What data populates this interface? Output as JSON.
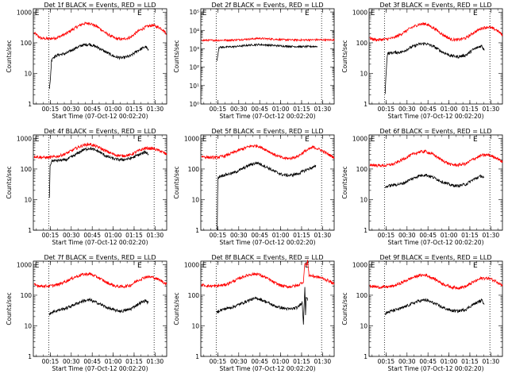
{
  "chart_data": [
    {
      "type": "line",
      "title": "Det 1f BLACK = Events, RED = LLD",
      "xlabel": "Start Time (07-Oct-12 00:02:20)",
      "ylabel": "Counts/sec",
      "xlim": [
        0.5,
        96
      ],
      "ylim": [
        1,
        1300
      ],
      "log_y": true,
      "x_ticks": [
        "00:15",
        "00:30",
        "00:45",
        "01:00",
        "01:15",
        "01:30"
      ],
      "x_tick_values": [
        12.67,
        27.67,
        42.67,
        57.67,
        72.67,
        87.67
      ],
      "y_ticks": [
        "1",
        "10",
        "100",
        "1000"
      ],
      "y_tick_values": [
        1,
        10,
        100,
        1000
      ],
      "vlines": [
        11.5,
        87.0
      ],
      "flags": [
        "E",
        "E"
      ],
      "flag_x": [
        1.5,
        75.0
      ],
      "series": [
        {
          "color": "#ff0000",
          "x": [
            1,
            6,
            12,
            18,
            24,
            30,
            36,
            41,
            47,
            53,
            59,
            64,
            70,
            75,
            81,
            86,
            92,
            96
          ],
          "values": [
            210,
            140,
            135,
            150,
            200,
            300,
            420,
            440,
            320,
            200,
            140,
            130,
            150,
            230,
            330,
            380,
            300,
            200
          ]
        },
        {
          "color": "#000000",
          "x": [
            12,
            12.5,
            13.5,
            14,
            18,
            24,
            30,
            36,
            41,
            47,
            53,
            59,
            64,
            70,
            75,
            81,
            83
          ],
          "values": [
            3,
            5,
            25,
            32,
            40,
            45,
            65,
            85,
            90,
            70,
            48,
            35,
            32,
            37,
            55,
            75,
            55
          ]
        }
      ]
    },
    {
      "type": "line",
      "title": "Det 2f BLACK = Events, RED = LLD",
      "xlabel": "Start Time (07-Oct-12 00:02:20)",
      "ylabel": "Counts/sec",
      "xlim": [
        0.5,
        96
      ],
      "ylim": [
        1,
        150000
      ],
      "log_y": true,
      "x_ticks": [
        "00:15",
        "00:30",
        "00:45",
        "01:00",
        "01:15",
        "01:30"
      ],
      "x_tick_values": [
        12.67,
        27.67,
        42.67,
        57.67,
        72.67,
        87.67
      ],
      "y_ticks": [
        "10⁰",
        "10¹",
        "10²",
        "10³",
        "10⁴",
        "10⁵"
      ],
      "y_tick_values": [
        1,
        10,
        100,
        1000,
        10000,
        100000
      ],
      "vlines": [
        11.5,
        87.0
      ],
      "flags": [
        "E",
        "E"
      ],
      "flag_x": [
        1.5,
        75.0
      ],
      "series": [
        {
          "color": "#ff0000",
          "x": [
            1,
            12,
            24,
            36,
            42,
            48,
            60,
            72,
            84,
            96
          ],
          "values": [
            2900,
            2900,
            3000,
            3400,
            3700,
            3500,
            3100,
            3000,
            3100,
            3000
          ]
        },
        {
          "color": "#000000",
          "x": [
            12,
            12.5,
            13.5,
            24,
            36,
            42,
            48,
            60,
            72,
            84
          ],
          "values": [
            200,
            400,
            1200,
            1300,
            1600,
            1700,
            1600,
            1400,
            1300,
            1350
          ]
        }
      ]
    },
    {
      "type": "line",
      "title": "Det 3f BLACK = Events, RED = LLD",
      "xlabel": "Start Time (07-Oct-12 00:02:20)",
      "ylabel": "Counts/sec",
      "xlim": [
        0.5,
        96
      ],
      "ylim": [
        1,
        1300
      ],
      "log_y": true,
      "x_ticks": [
        "00:15",
        "00:30",
        "00:45",
        "01:00",
        "01:15",
        "01:30"
      ],
      "x_tick_values": [
        12.67,
        27.67,
        42.67,
        57.67,
        72.67,
        87.67
      ],
      "y_ticks": [
        "1",
        "10",
        "100",
        "1000"
      ],
      "y_tick_values": [
        1,
        10,
        100,
        1000
      ],
      "vlines": [
        11.5,
        87.0
      ],
      "flags": [
        "E",
        "E"
      ],
      "flag_x": [
        1.5,
        75.0
      ],
      "series": [
        {
          "color": "#ff0000",
          "x": [
            1,
            6,
            12,
            18,
            24,
            30,
            36,
            41,
            47,
            53,
            59,
            64,
            70,
            75,
            81,
            86,
            92,
            96
          ],
          "values": [
            140,
            125,
            130,
            145,
            200,
            300,
            400,
            420,
            300,
            190,
            130,
            125,
            145,
            210,
            300,
            330,
            260,
            180
          ]
        },
        {
          "color": "#000000",
          "x": [
            12,
            12.5,
            13.5,
            14,
            18,
            24,
            30,
            36,
            41,
            47,
            53,
            59,
            64,
            70,
            75,
            81,
            83
          ],
          "values": [
            2,
            8,
            40,
            45,
            48,
            50,
            70,
            90,
            95,
            75,
            50,
            38,
            35,
            40,
            60,
            80,
            60
          ]
        }
      ]
    },
    {
      "type": "line",
      "title": "Det 4f BLACK = Events, RED = LLD",
      "xlabel": "Start Time (07-Oct-12 00:02:20)",
      "ylabel": "Counts/sec",
      "xlim": [
        0.5,
        96
      ],
      "ylim": [
        1,
        1300
      ],
      "log_y": true,
      "x_ticks": [
        "00:15",
        "00:30",
        "00:45",
        "01:00",
        "01:15",
        "01:30"
      ],
      "x_tick_values": [
        12.67,
        27.67,
        42.67,
        57.67,
        72.67,
        87.67
      ],
      "y_ticks": [
        "1",
        "10",
        "100",
        "1000"
      ],
      "y_tick_values": [
        1,
        10,
        100,
        1000
      ],
      "vlines": [
        11.5,
        87.0
      ],
      "flags": [
        "E",
        "E"
      ],
      "flag_x": [
        1.5,
        75.0
      ],
      "series": [
        {
          "color": "#ff0000",
          "x": [
            1,
            6,
            12,
            18,
            24,
            30,
            36,
            41,
            47,
            53,
            59,
            64,
            70,
            75,
            81,
            86,
            92,
            96
          ],
          "values": [
            260,
            240,
            240,
            260,
            320,
            450,
            600,
            650,
            520,
            380,
            290,
            270,
            290,
            380,
            480,
            470,
            380,
            300
          ]
        },
        {
          "color": "#000000",
          "x": [
            12,
            12.5,
            13.5,
            14,
            18,
            24,
            30,
            36,
            41,
            47,
            53,
            59,
            64,
            70,
            75,
            81,
            83
          ],
          "values": [
            12,
            120,
            180,
            185,
            190,
            200,
            280,
            420,
            480,
            380,
            260,
            210,
            200,
            220,
            280,
            360,
            300
          ]
        }
      ]
    },
    {
      "type": "line",
      "title": "Det 5f BLACK = Events, RED = LLD",
      "xlabel": "Start Time (07-Oct-12 00:02:20)",
      "ylabel": "Counts/sec",
      "xlim": [
        0.5,
        96
      ],
      "ylim": [
        1,
        1300
      ],
      "log_y": true,
      "x_ticks": [
        "00:15",
        "00:30",
        "00:45",
        "01:00",
        "01:15",
        "01:30"
      ],
      "x_tick_values": [
        12.67,
        27.67,
        42.67,
        57.67,
        72.67,
        87.67
      ],
      "y_ticks": [
        "1",
        "10",
        "100",
        "1000"
      ],
      "y_tick_values": [
        1,
        10,
        100,
        1000
      ],
      "vlines": [
        11.5,
        87.0
      ],
      "flags": [
        "E",
        "E"
      ],
      "flag_x": [
        1.5,
        75.0
      ],
      "series": [
        {
          "color": "#ff0000",
          "x": [
            1,
            6,
            12,
            18,
            24,
            30,
            36,
            41,
            47,
            53,
            59,
            64,
            70,
            75,
            81,
            86,
            92,
            96
          ],
          "values": [
            260,
            240,
            240,
            270,
            350,
            450,
            560,
            580,
            430,
            300,
            230,
            220,
            260,
            380,
            520,
            430,
            300,
            240
          ]
        },
        {
          "color": "#000000",
          "x": [
            12,
            12.3,
            12.6,
            13.5,
            14,
            18,
            24,
            30,
            36,
            41,
            47,
            53,
            59,
            64,
            70,
            75,
            81,
            83
          ],
          "values": [
            1,
            1,
            50,
            55,
            58,
            65,
            75,
            100,
            140,
            160,
            120,
            85,
            65,
            62,
            70,
            90,
            115,
            120
          ]
        }
      ]
    },
    {
      "type": "line",
      "title": "Det 6f BLACK = Events, RED = LLD",
      "xlabel": "Start Time (07-Oct-12 00:02:20)",
      "ylabel": "Counts/sec",
      "xlim": [
        0.5,
        96
      ],
      "ylim": [
        1,
        1300
      ],
      "log_y": true,
      "x_ticks": [
        "00:15",
        "00:30",
        "00:45",
        "01:00",
        "01:15",
        "01:30"
      ],
      "x_tick_values": [
        12.67,
        27.67,
        42.67,
        57.67,
        72.67,
        87.67
      ],
      "y_ticks": [
        "1",
        "10",
        "100",
        "1000"
      ],
      "y_tick_values": [
        1,
        10,
        100,
        1000
      ],
      "vlines": [
        11.5,
        87.0
      ],
      "flags": [
        "E",
        "E"
      ],
      "flag_x": [
        1.5,
        75.0
      ],
      "series": [
        {
          "color": "#ff0000",
          "x": [
            1,
            6,
            12,
            18,
            24,
            30,
            36,
            41,
            47,
            53,
            59,
            64,
            70,
            75,
            81,
            86,
            92,
            96
          ],
          "values": [
            140,
            130,
            130,
            145,
            200,
            280,
            360,
            380,
            290,
            190,
            140,
            135,
            150,
            210,
            280,
            290,
            230,
            170
          ]
        },
        {
          "color": "#000000",
          "x": [
            12,
            14,
            18,
            24,
            30,
            36,
            41,
            47,
            53,
            59,
            64,
            70,
            75,
            81,
            83
          ],
          "values": [
            25,
            28,
            30,
            33,
            45,
            60,
            65,
            52,
            38,
            30,
            28,
            32,
            45,
            60,
            50
          ]
        }
      ]
    },
    {
      "type": "line",
      "title": "Det 7f BLACK = Events, RED = LLD",
      "xlabel": "Start Time (07-Oct-12 00:02:20)",
      "ylabel": "Counts/sec",
      "xlim": [
        0.5,
        96
      ],
      "ylim": [
        1,
        1300
      ],
      "log_y": true,
      "x_ticks": [
        "00:15",
        "00:30",
        "00:45",
        "01:00",
        "01:15",
        "01:30"
      ],
      "x_tick_values": [
        12.67,
        27.67,
        42.67,
        57.67,
        72.67,
        87.67
      ],
      "y_ticks": [
        "1",
        "10",
        "100",
        "1000"
      ],
      "y_tick_values": [
        1,
        10,
        100,
        1000
      ],
      "vlines": [
        11.5,
        87.0
      ],
      "flags": [
        "E",
        "E"
      ],
      "flag_x": [
        1.5,
        75.0
      ],
      "series": [
        {
          "color": "#ff0000",
          "x": [
            1,
            6,
            12,
            18,
            24,
            30,
            36,
            41,
            47,
            53,
            59,
            64,
            70,
            75,
            81,
            86,
            92,
            96
          ],
          "values": [
            220,
            200,
            200,
            220,
            290,
            390,
            480,
            500,
            380,
            260,
            200,
            190,
            210,
            300,
            400,
            390,
            300,
            230
          ]
        },
        {
          "color": "#000000",
          "x": [
            12,
            14,
            18,
            24,
            30,
            36,
            41,
            47,
            53,
            59,
            64,
            70,
            75,
            81,
            83
          ],
          "values": [
            25,
            28,
            32,
            38,
            50,
            65,
            70,
            55,
            40,
            32,
            30,
            35,
            50,
            68,
            55
          ]
        }
      ]
    },
    {
      "type": "line",
      "title": "Det 8f BLACK = Events, RED = LLD",
      "xlabel": "Start Time (07-Oct-12 00:02:20)",
      "ylabel": "Counts/sec",
      "xlim": [
        0.5,
        96
      ],
      "ylim": [
        1,
        1300
      ],
      "log_y": true,
      "x_ticks": [
        "00:15",
        "00:30",
        "00:45",
        "01:00",
        "01:15",
        "01:30"
      ],
      "x_tick_values": [
        12.67,
        27.67,
        42.67,
        57.67,
        72.67,
        87.67
      ],
      "y_ticks": [
        "1",
        "10",
        "100",
        "1000"
      ],
      "y_tick_values": [
        1,
        10,
        100,
        1000
      ],
      "vlines": [
        11.5,
        87.0
      ],
      "flags": [
        "E",
        "E"
      ],
      "flag_x": [
        1.5,
        75.0
      ],
      "series": [
        {
          "color": "#ff0000",
          "x": [
            1,
            6,
            12,
            18,
            24,
            30,
            36,
            41,
            47,
            53,
            59,
            64,
            70,
            74,
            75,
            76,
            77,
            78,
            81,
            86,
            92,
            96
          ],
          "values": [
            220,
            200,
            200,
            220,
            290,
            390,
            480,
            500,
            380,
            260,
            200,
            190,
            210,
            280,
            1200,
            900,
            1300,
            450,
            420,
            380,
            300,
            230
          ]
        },
        {
          "color": "#000000",
          "x": [
            12,
            14,
            18,
            24,
            30,
            36,
            41,
            47,
            53,
            59,
            64,
            70,
            73,
            74,
            75,
            75.5,
            76,
            77
          ],
          "values": [
            28,
            32,
            36,
            42,
            55,
            72,
            80,
            62,
            45,
            38,
            35,
            40,
            60,
            12,
            200,
            25,
            90,
            70
          ]
        }
      ]
    },
    {
      "type": "line",
      "title": "Det 9f BLACK = Events, RED = LLD",
      "xlabel": "Start Time (07-Oct-12 00:02:20)",
      "ylabel": "Counts/sec",
      "xlim": [
        0.5,
        96
      ],
      "ylim": [
        1,
        1300
      ],
      "log_y": true,
      "x_ticks": [
        "00:15",
        "00:30",
        "00:45",
        "01:00",
        "01:15",
        "01:30"
      ],
      "x_tick_values": [
        12.67,
        27.67,
        42.67,
        57.67,
        72.67,
        87.67
      ],
      "y_ticks": [
        "1",
        "10",
        "100",
        "1000"
      ],
      "y_tick_values": [
        1,
        10,
        100,
        1000
      ],
      "vlines": [
        11.5,
        87.0
      ],
      "flags": [
        "E",
        "E"
      ],
      "flag_x": [
        1.5,
        75.0
      ],
      "series": [
        {
          "color": "#ff0000",
          "x": [
            1,
            6,
            12,
            18,
            24,
            30,
            36,
            41,
            47,
            53,
            59,
            64,
            70,
            75,
            81,
            86,
            92,
            96
          ],
          "values": [
            200,
            185,
            185,
            200,
            260,
            350,
            440,
            460,
            350,
            240,
            185,
            175,
            195,
            270,
            360,
            360,
            280,
            210
          ]
        },
        {
          "color": "#000000",
          "x": [
            12,
            14,
            18,
            24,
            30,
            36,
            41,
            47,
            53,
            59,
            64,
            70,
            75,
            81,
            83
          ],
          "values": [
            25,
            28,
            32,
            38,
            50,
            65,
            70,
            55,
            40,
            32,
            30,
            35,
            50,
            68,
            55
          ]
        }
      ]
    }
  ]
}
